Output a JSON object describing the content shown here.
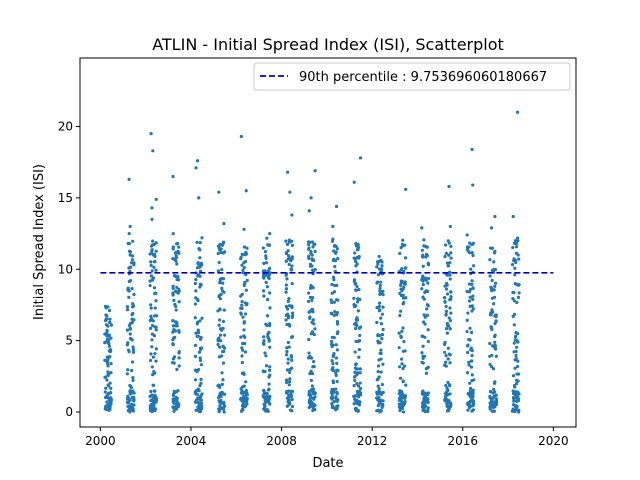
{
  "chart_data": {
    "type": "scatter",
    "title": "ATLIN - Initial Spread Index (ISI), Scatterplot",
    "xlabel": "Date",
    "ylabel": "Initial Spread Index (ISI)",
    "xlim": [
      1999.1,
      2021.0
    ],
    "ylim": [
      -1.05,
      24.8
    ],
    "x_ticks": [
      2000,
      2004,
      2008,
      2012,
      2016,
      2020
    ],
    "y_ticks": [
      0,
      5,
      10,
      15,
      20
    ],
    "legend_position": "top-right",
    "grid": false,
    "series": [
      {
        "name": "",
        "type": "scatter",
        "color": "#1f77b4",
        "seasons": [
          {
            "year": 2000,
            "max": 7.4
          },
          {
            "year": 2001,
            "max": 16.3,
            "extra": [
              13.0,
              12.5
            ]
          },
          {
            "year": 2002,
            "max": 19.5,
            "extra": [
              18.3,
              14.9,
              14.3,
              13.5
            ]
          },
          {
            "year": 2003,
            "max": 16.5,
            "extra": [
              12.5
            ]
          },
          {
            "year": 2004,
            "max": 17.6,
            "extra": [
              17.1,
              15.0,
              12.2
            ]
          },
          {
            "year": 2005,
            "max": 15.4,
            "extra": [
              13.2
            ]
          },
          {
            "year": 2006,
            "max": 19.3,
            "extra": [
              15.5,
              12.8
            ]
          },
          {
            "year": 2007,
            "max": 12.5
          },
          {
            "year": 2008,
            "max": 16.8,
            "extra": [
              15.4,
              13.8
            ]
          },
          {
            "year": 2009,
            "max": 16.9,
            "extra": [
              15.0,
              14.1
            ]
          },
          {
            "year": 2010,
            "max": 14.4,
            "extra": [
              13.0
            ]
          },
          {
            "year": 2011,
            "max": 17.8,
            "extra": [
              16.1
            ]
          },
          {
            "year": 2012,
            "max": 10.9
          },
          {
            "year": 2013,
            "max": 15.6
          },
          {
            "year": 2014,
            "max": 12.9
          },
          {
            "year": 2015,
            "max": 15.8,
            "extra": [
              13.0
            ]
          },
          {
            "year": 2016,
            "max": 18.4,
            "extra": [
              15.9,
              12.4
            ]
          },
          {
            "year": 2017,
            "max": 13.7,
            "extra": [
              12.9
            ]
          },
          {
            "year": 2018,
            "max": 21.0,
            "extra": [
              13.7
            ]
          }
        ]
      },
      {
        "name": "90th percentile : 9.753696060180667",
        "type": "hline",
        "value": 9.753696060180667,
        "x_range": [
          2000,
          2020
        ],
        "color": "#0000cc",
        "style": "dashed"
      }
    ]
  }
}
